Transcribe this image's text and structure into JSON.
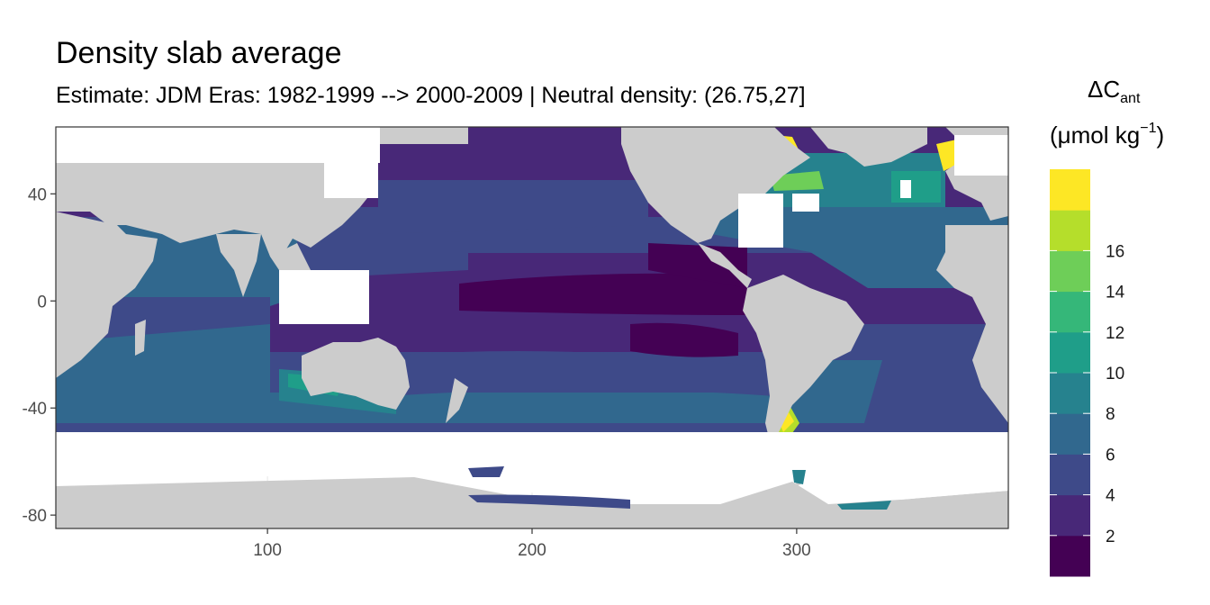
{
  "chart_data": {
    "type": "heatmap",
    "title": "Density slab average",
    "subtitle": "Estimate: JDM Eras: 1982-1999 --> 2000-2009 | Neutral density: (26.75,27]",
    "legend_title_main": "ΔC",
    "legend_title_sub": "ant",
    "legend_title_unit_pre": "(μmol kg",
    "legend_title_unit_sup": "−1",
    "legend_title_unit_post": ")",
    "x_ticks": [
      100,
      200,
      300
    ],
    "y_ticks": [
      40,
      0,
      -40,
      -80
    ],
    "xlim": [
      20,
      380
    ],
    "ylim": [
      -85,
      65
    ],
    "legend_placement": "right",
    "legend_breaks": [
      "2",
      "4",
      "6",
      "8",
      "10",
      "12",
      "14",
      "16"
    ],
    "color_bins": [
      {
        "range": "0-2",
        "color": "#440154"
      },
      {
        "range": "2-4",
        "color": "#482878"
      },
      {
        "range": "4-6",
        "color": "#3e4a89"
      },
      {
        "range": "6-8",
        "color": "#31688e"
      },
      {
        "range": "8-10",
        "color": "#26828e"
      },
      {
        "range": "10-12",
        "color": "#1f9e89"
      },
      {
        "range": "12-14",
        "color": "#35b779"
      },
      {
        "range": "14-16",
        "color": "#6ece58"
      },
      {
        "range": "16-18",
        "color": "#b5de2b"
      },
      {
        "range": ">18",
        "color": "#fde725"
      }
    ],
    "land_color": "#cccccc",
    "grid": true
  }
}
